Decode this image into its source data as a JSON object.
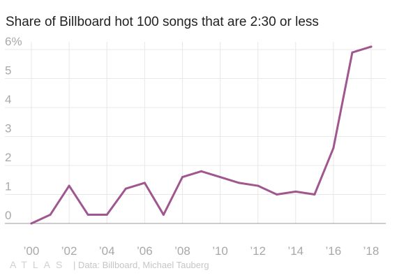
{
  "title": "Share of Billboard hot 100 songs that are 2:30 or less",
  "footer": {
    "logo": "ATLAS",
    "source": "| Data: Billboard, Michael Tauberg"
  },
  "colors": {
    "line": "#a0568f",
    "grid": "#e8e8e8",
    "baseline": "#9a9a9a",
    "tick_text": "#a8a8a8"
  },
  "chart_data": {
    "type": "line",
    "title": "Share of Billboard hot 100 songs that are 2:30 or less",
    "xlabel": "",
    "ylabel": "",
    "x": [
      2000,
      2001,
      2002,
      2003,
      2004,
      2005,
      2006,
      2007,
      2008,
      2009,
      2010,
      2011,
      2012,
      2013,
      2014,
      2015,
      2016,
      2017,
      2018
    ],
    "series": [
      {
        "values": [
          0,
          0.3,
          1.3,
          0.3,
          0.3,
          1.2,
          1.4,
          0.3,
          1.6,
          1.8,
          1.6,
          1.4,
          1.3,
          1.0,
          1.1,
          1.0,
          2.6,
          5.9,
          6.1
        ]
      }
    ],
    "xlim": [
      2000,
      2018
    ],
    "ylim": [
      0,
      6
    ],
    "x_ticks": [
      2000,
      2002,
      2004,
      2006,
      2008,
      2010,
      2012,
      2014,
      2016,
      2018
    ],
    "x_tick_labels": [
      "’00",
      "’02",
      "’04",
      "’06",
      "’08",
      "’10",
      "’12",
      "’14",
      "’16",
      "’18"
    ],
    "y_ticks": [
      0,
      1,
      2,
      3,
      4,
      5,
      6
    ],
    "y_tick_labels": [
      "0",
      "1",
      "2",
      "3",
      "4",
      "5",
      "6%"
    ],
    "grid": true
  }
}
